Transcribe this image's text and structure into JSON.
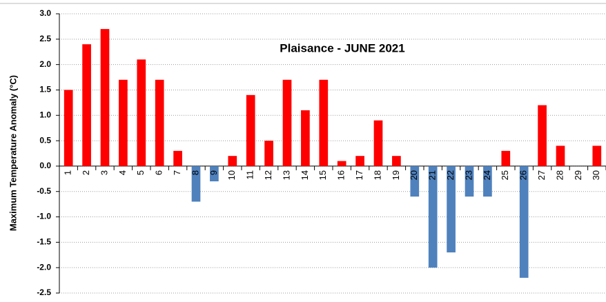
{
  "chart_data": {
    "type": "bar",
    "title": "Plaisance - JUNE 2021",
    "y_label": "Maximum Temperature Anomaly (°C)",
    "categories": [
      "1",
      "2",
      "3",
      "4",
      "5",
      "6",
      "7",
      "8",
      "9",
      "10",
      "11",
      "12",
      "13",
      "14",
      "15",
      "16",
      "17",
      "18",
      "19",
      "20",
      "21",
      "22",
      "23",
      "24",
      "25",
      "26",
      "27",
      "28",
      "29",
      "30"
    ],
    "values": [
      1.5,
      2.4,
      2.7,
      1.7,
      2.1,
      1.7,
      0.3,
      -0.7,
      -0.3,
      0.2,
      1.4,
      0.5,
      1.7,
      1.1,
      1.7,
      0.1,
      0.2,
      0.9,
      0.2,
      -0.6,
      -2.0,
      -1.7,
      -0.6,
      -0.6,
      0.3,
      -2.2,
      1.2,
      0.4,
      0,
      0.4
    ],
    "color": "#ff0000",
    "negative_color": "#4f81bd",
    "ylim": [
      -2.5,
      3.0
    ],
    "yticks": [
      {
        "value": 3.0,
        "label": "3.0"
      },
      2.5,
      {
        "value": 2.0,
        "label": "2.0"
      },
      1.5,
      {
        "value": 1.0,
        "label": "1.0"
      },
      0.5,
      {
        "value": 0,
        "label": "0.0"
      },
      -0.5,
      {
        "value": -1.0,
        "label": "-1.0"
      },
      -1.5,
      {
        "value": -2.0,
        "label": "-2.0"
      },
      -2.5
    ],
    "grid": true
  }
}
